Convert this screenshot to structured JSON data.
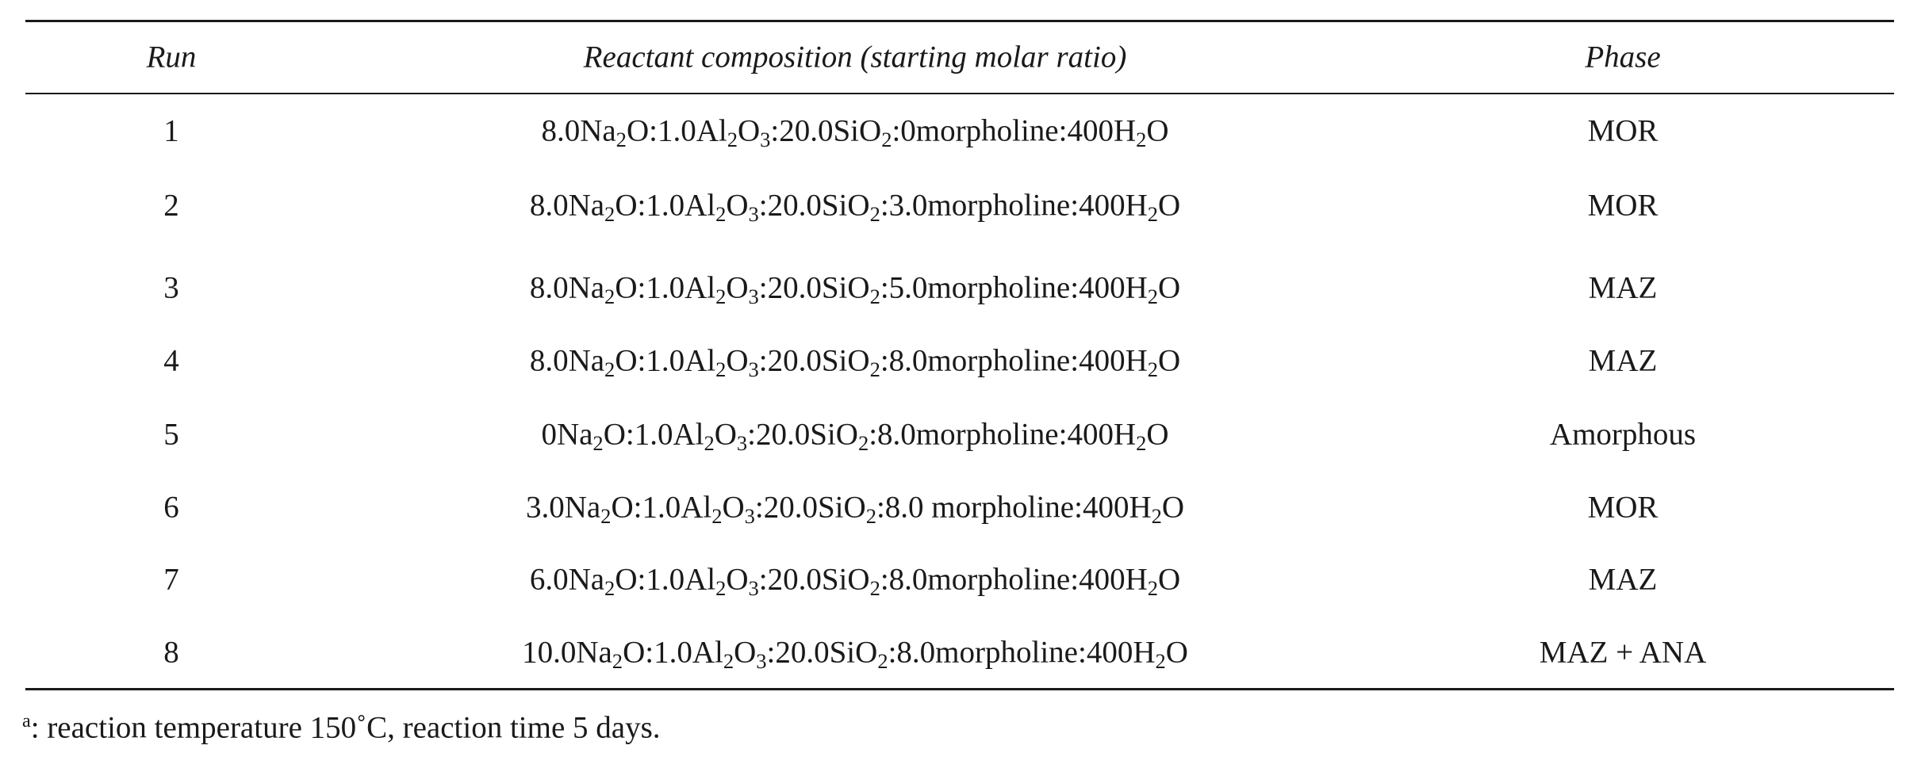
{
  "table": {
    "headers": {
      "run": "Run",
      "composition": "Reactant composition (starting molar ratio)",
      "phase": "Phase"
    },
    "rows": [
      {
        "run": "1",
        "composition": {
          "na2o": "8.0Na",
          "na_sub": "2",
          "na_tail": "O:",
          "al2o3": "1.0Al",
          "al_sub": "2",
          "al_mid": "O",
          "o_sub": "3",
          "al_tail": ":",
          "sio2": "20.0SiO",
          "si_sub": "2",
          "si_tail": ":",
          "morph": "0morpholine:400H",
          "h_sub": "2",
          "h_tail": "O"
        },
        "phase": "MOR"
      },
      {
        "run": "2",
        "composition": {
          "na2o": "8.0Na",
          "na_sub": "2",
          "na_tail": "O:",
          "al2o3": "1.0Al",
          "al_sub": "2",
          "al_mid": "O",
          "o_sub": "3",
          "al_tail": ":",
          "sio2": "20.0SiO",
          "si_sub": "2",
          "si_tail": ":",
          "morph": "3.0morpholine:400H",
          "h_sub": "2",
          "h_tail": "O"
        },
        "phase": "MOR"
      },
      {
        "run": "3",
        "composition": {
          "na2o": "8.0Na",
          "na_sub": "2",
          "na_tail": "O:",
          "al2o3": "1.0Al",
          "al_sub": "2",
          "al_mid": "O",
          "o_sub": "3",
          "al_tail": ":",
          "sio2": "20.0SiO",
          "si_sub": "2",
          "si_tail": ":",
          "morph": "5.0morpholine:400H",
          "h_sub": "2",
          "h_tail": "O"
        },
        "phase": "MAZ"
      },
      {
        "run": "4",
        "composition": {
          "na2o": "8.0Na",
          "na_sub": "2",
          "na_tail": "O:",
          "al2o3": "1.0Al",
          "al_sub": "2",
          "al_mid": "O",
          "o_sub": "3",
          "al_tail": ":",
          "sio2": "20.0SiO",
          "si_sub": "2",
          "si_tail": ":",
          "morph": "8.0morpholine:400H",
          "h_sub": "2",
          "h_tail": "O"
        },
        "phase": "MAZ"
      },
      {
        "run": "5",
        "composition": {
          "na2o": "0Na",
          "na_sub": "2",
          "na_tail": "O:",
          "al2o3": "1.0Al",
          "al_sub": "2",
          "al_mid": "O",
          "o_sub": "3",
          "al_tail": ":",
          "sio2": "20.0SiO",
          "si_sub": "2",
          "si_tail": ":",
          "morph": "8.0morpholine:400H",
          "h_sub": "2",
          "h_tail": "O"
        },
        "phase": "Amorphous"
      },
      {
        "run": "6",
        "composition": {
          "na2o": "3.0Na",
          "na_sub": "2",
          "na_tail": "O:",
          "al2o3": "1.0Al",
          "al_sub": "2",
          "al_mid": "O",
          "o_sub": "3",
          "al_tail": ":",
          "sio2": "20.0SiO",
          "si_sub": "2",
          "si_tail": ":",
          "morph": "8.0 morpholine:400H",
          "h_sub": "2",
          "h_tail": "O"
        },
        "phase": "MOR"
      },
      {
        "run": "7",
        "composition": {
          "na2o": "6.0Na",
          "na_sub": "2",
          "na_tail": "O:",
          "al2o3": "1.0Al",
          "al_sub": "2",
          "al_mid": "O",
          "o_sub": "3",
          "al_tail": ":",
          "sio2": "20.0SiO",
          "si_sub": "2",
          "si_tail": ":",
          "morph": "8.0morpholine:400H",
          "h_sub": "2",
          "h_tail": "O"
        },
        "phase": "MAZ"
      },
      {
        "run": "8",
        "composition": {
          "na2o": "10.0Na",
          "na_sub": "2",
          "na_tail": "O:",
          "al2o3": "1.0Al",
          "al_sub": "2",
          "al_mid": "O",
          "o_sub": "3",
          "al_tail": ":",
          "sio2": "20.0SiO",
          "si_sub": "2",
          "si_tail": ":",
          "morph": "8.0morpholine:400H",
          "h_sub": "2",
          "h_tail": "O"
        },
        "phase": "MAZ + ANA"
      }
    ]
  },
  "footnote": {
    "marker": "a",
    "text": ": reaction temperature 150˚C, reaction time 5 days."
  }
}
